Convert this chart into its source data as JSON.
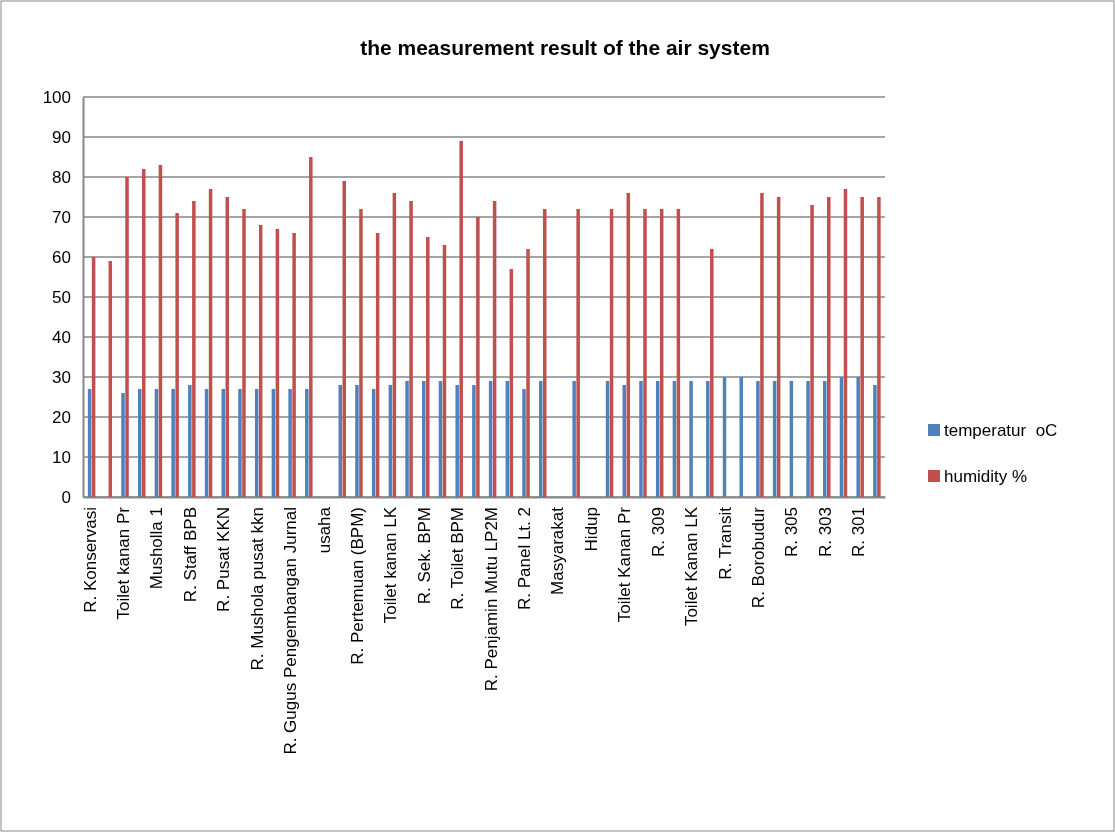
{
  "chart_data": {
    "type": "bar",
    "title": "the measurement result of the air system",
    "categories": [
      "R. Konservasi",
      null,
      "Toilet kanan Pr",
      null,
      "Musholla 1",
      null,
      "R. Staff BPB",
      null,
      "R. Pusat KKN",
      null,
      "R. Mushola pusat kkn",
      null,
      "R. Gugus Pengembangan Jurnal",
      null,
      "usaha",
      null,
      "R. Pertemuan (BPM)",
      null,
      "Toilet kanan LK",
      null,
      "R. Sek. BPM",
      null,
      "R. Toilet BPM",
      null,
      "R. Penjamin Mutu LP2M",
      null,
      "R. Panel Lt. 2",
      null,
      "Masyarakat",
      null,
      "Hidup",
      null,
      "Toilet Kanan Pr",
      null,
      "R. 309",
      null,
      "Toilet Kanan LK",
      null,
      "R. Transit",
      null,
      "R. Borobudur",
      null,
      "R. 305",
      null,
      "R. 303",
      null,
      "R. 301",
      null
    ],
    "series": [
      {
        "name": "temperatur  oC",
        "color": "#4f81bd",
        "values": [
          27,
          null,
          26,
          27,
          27,
          27,
          28,
          27,
          27,
          27,
          27,
          27,
          27,
          27,
          null,
          28,
          28,
          27,
          28,
          29,
          29,
          29,
          28,
          28,
          29,
          29,
          27,
          29,
          null,
          29,
          null,
          29,
          28,
          29,
          29,
          29,
          29,
          29,
          30,
          30,
          29,
          29,
          29,
          29,
          29,
          30,
          30,
          28
        ]
      },
      {
        "name": "humidity %",
        "color": "#c0504d",
        "values": [
          60,
          59,
          80,
          82,
          83,
          71,
          74,
          77,
          75,
          72,
          68,
          67,
          66,
          85,
          null,
          79,
          72,
          66,
          76,
          74,
          65,
          63,
          89,
          70,
          74,
          57,
          62,
          72,
          null,
          72,
          null,
          72,
          76,
          72,
          72,
          72,
          null,
          62,
          null,
          null,
          76,
          75,
          null,
          73,
          75,
          77,
          75,
          75
        ]
      }
    ],
    "ylim": [
      0,
      100
    ],
    "yticks": [
      0,
      10,
      20,
      30,
      40,
      50,
      60,
      70,
      80,
      90,
      100
    ],
    "grid": "y",
    "legend": "right"
  }
}
